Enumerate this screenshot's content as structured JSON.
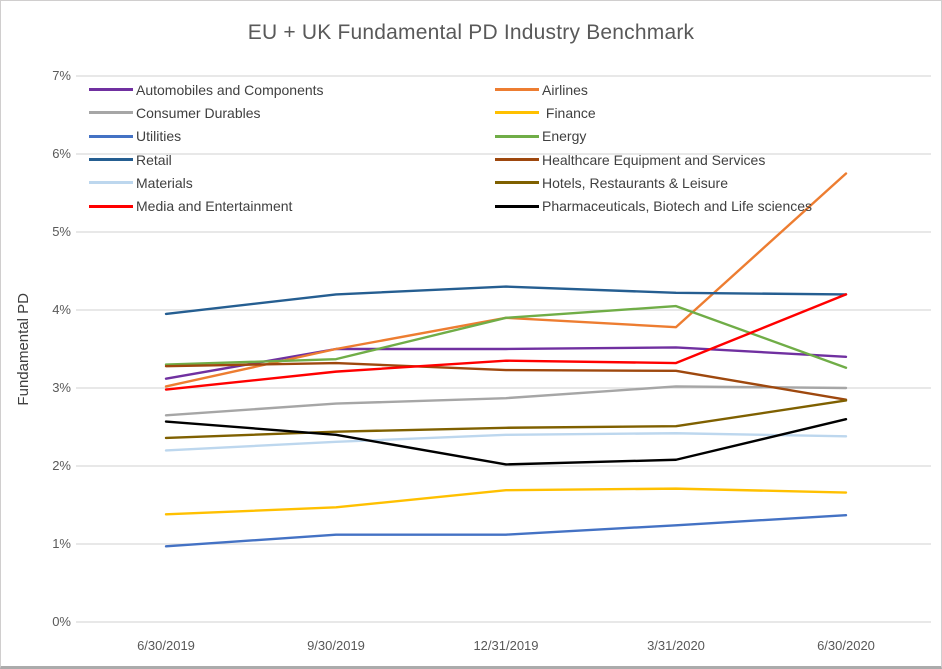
{
  "colors": {
    "background": "#FFFFFF",
    "frame_border": "#D0CECE",
    "gridline": "#D9D9D9",
    "tick_label": "#595959",
    "title_text": "#595959",
    "legend_text": "#404040"
  },
  "chart_data": {
    "type": "line",
    "title": "EU + UK Fundamental PD Industry Benchmark",
    "xlabel": "",
    "ylabel": "Fundamental PD",
    "categories": [
      "6/30/2019",
      "9/30/2019",
      "12/31/2019",
      "3/31/2020",
      "6/30/2020"
    ],
    "ylim": [
      0,
      7
    ],
    "y_tick_labels": [
      "0%",
      "1%",
      "2%",
      "3%",
      "4%",
      "5%",
      "6%",
      "7%"
    ],
    "grid": true,
    "legend": {
      "position": "top-inside",
      "columns": 2,
      "order": "row-major"
    },
    "series": [
      {
        "name": "Automobiles and Components",
        "color": "#7030A0",
        "values": [
          3.12,
          3.5,
          3.5,
          3.52,
          3.4
        ]
      },
      {
        "name": "Airlines",
        "color": "#ED7D31",
        "values": [
          3.02,
          3.5,
          3.9,
          3.78,
          5.75
        ]
      },
      {
        "name": "Consumer Durables",
        "color": "#A6A6A6",
        "values": [
          2.65,
          2.8,
          2.87,
          3.02,
          3.0
        ]
      },
      {
        "name": " Finance",
        "color": "#FFC000",
        "values": [
          1.38,
          1.47,
          1.69,
          1.71,
          1.66
        ]
      },
      {
        "name": "Utilities",
        "color": "#4472C4",
        "values": [
          0.97,
          1.12,
          1.12,
          1.24,
          1.37
        ]
      },
      {
        "name": "Energy",
        "color": "#70AD47",
        "values": [
          3.3,
          3.37,
          3.9,
          4.05,
          3.26
        ]
      },
      {
        "name": "Retail",
        "color": "#255E91",
        "values": [
          3.95,
          4.2,
          4.3,
          4.22,
          4.2
        ]
      },
      {
        "name": "Healthcare Equipment and Services",
        "color": "#9E480E",
        "values": [
          3.28,
          3.32,
          3.23,
          3.22,
          2.85
        ]
      },
      {
        "name": "Materials",
        "color": "#BDD7EE",
        "values": [
          2.2,
          2.31,
          2.4,
          2.42,
          2.38
        ]
      },
      {
        "name": "Hotels, Restaurants & Leisure",
        "color": "#7F6000",
        "values": [
          2.36,
          2.44,
          2.49,
          2.51,
          2.84
        ]
      },
      {
        "name": "Media and Entertainment",
        "color": "#FF0000",
        "values": [
          2.98,
          3.21,
          3.35,
          3.32,
          4.2
        ]
      },
      {
        "name": "Pharmaceuticals, Biotech and Life sciences",
        "color": "#000000",
        "values": [
          2.57,
          2.4,
          2.02,
          2.08,
          2.6
        ]
      }
    ]
  }
}
